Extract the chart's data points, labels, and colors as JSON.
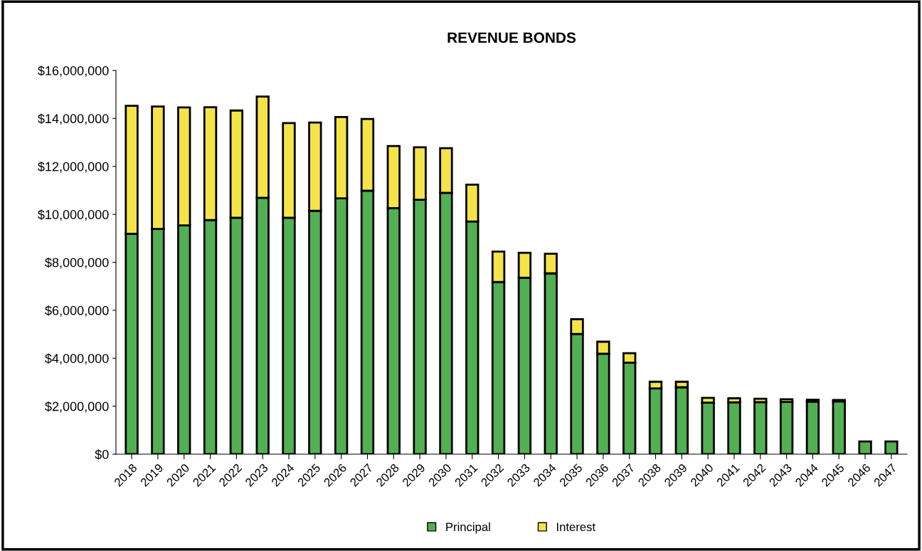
{
  "chart_data": {
    "type": "bar",
    "title": "REVENUE BONDS",
    "stacked": true,
    "legend": "bottom",
    "grid": false,
    "categories": [
      "2018",
      "2019",
      "2020",
      "2021",
      "2022",
      "2023",
      "2024",
      "2025",
      "2026",
      "2027",
      "2028",
      "2029",
      "2030",
      "2031",
      "2032",
      "2033",
      "2034",
      "2035",
      "2036",
      "2037",
      "2038",
      "2039",
      "2040",
      "2041",
      "2042",
      "2043",
      "2044",
      "2045",
      "2046",
      "2047"
    ],
    "series": [
      {
        "name": "Principal",
        "color": "#52b052",
        "values": [
          9190000,
          9390000,
          9540000,
          9760000,
          9860000,
          10690000,
          9860000,
          10150000,
          10670000,
          10990000,
          10260000,
          10610000,
          10900000,
          9700000,
          7180000,
          7360000,
          7540000,
          5010000,
          4190000,
          3820000,
          2740000,
          2790000,
          2150000,
          2160000,
          2170000,
          2180000,
          2190000,
          2200000,
          530000,
          530000
        ]
      },
      {
        "name": "Interest",
        "color": "#f5e34a",
        "values": [
          5340000,
          5110000,
          4920000,
          4710000,
          4470000,
          4220000,
          3950000,
          3680000,
          3390000,
          2990000,
          2590000,
          2190000,
          1860000,
          1540000,
          1270000,
          1040000,
          820000,
          620000,
          500000,
          390000,
          280000,
          230000,
          200000,
          170000,
          140000,
          110000,
          80000,
          60000,
          null,
          null
        ]
      }
    ],
    "ylim": [
      0,
      16000000
    ],
    "yticks": [
      {
        "value": 0,
        "label": "$0"
      },
      {
        "value": 2000000,
        "label": "$2,000,000"
      },
      {
        "value": 4000000,
        "label": "$4,000,000"
      },
      {
        "value": 6000000,
        "label": "$6,000,000"
      },
      {
        "value": 8000000,
        "label": "$8,000,000"
      },
      {
        "value": 10000000,
        "label": "$10,000,000"
      },
      {
        "value": 12000000,
        "label": "$12,000,000"
      },
      {
        "value": 14000000,
        "label": "$14,000,000"
      },
      {
        "value": 16000000,
        "label": "$16,000,000"
      }
    ]
  }
}
